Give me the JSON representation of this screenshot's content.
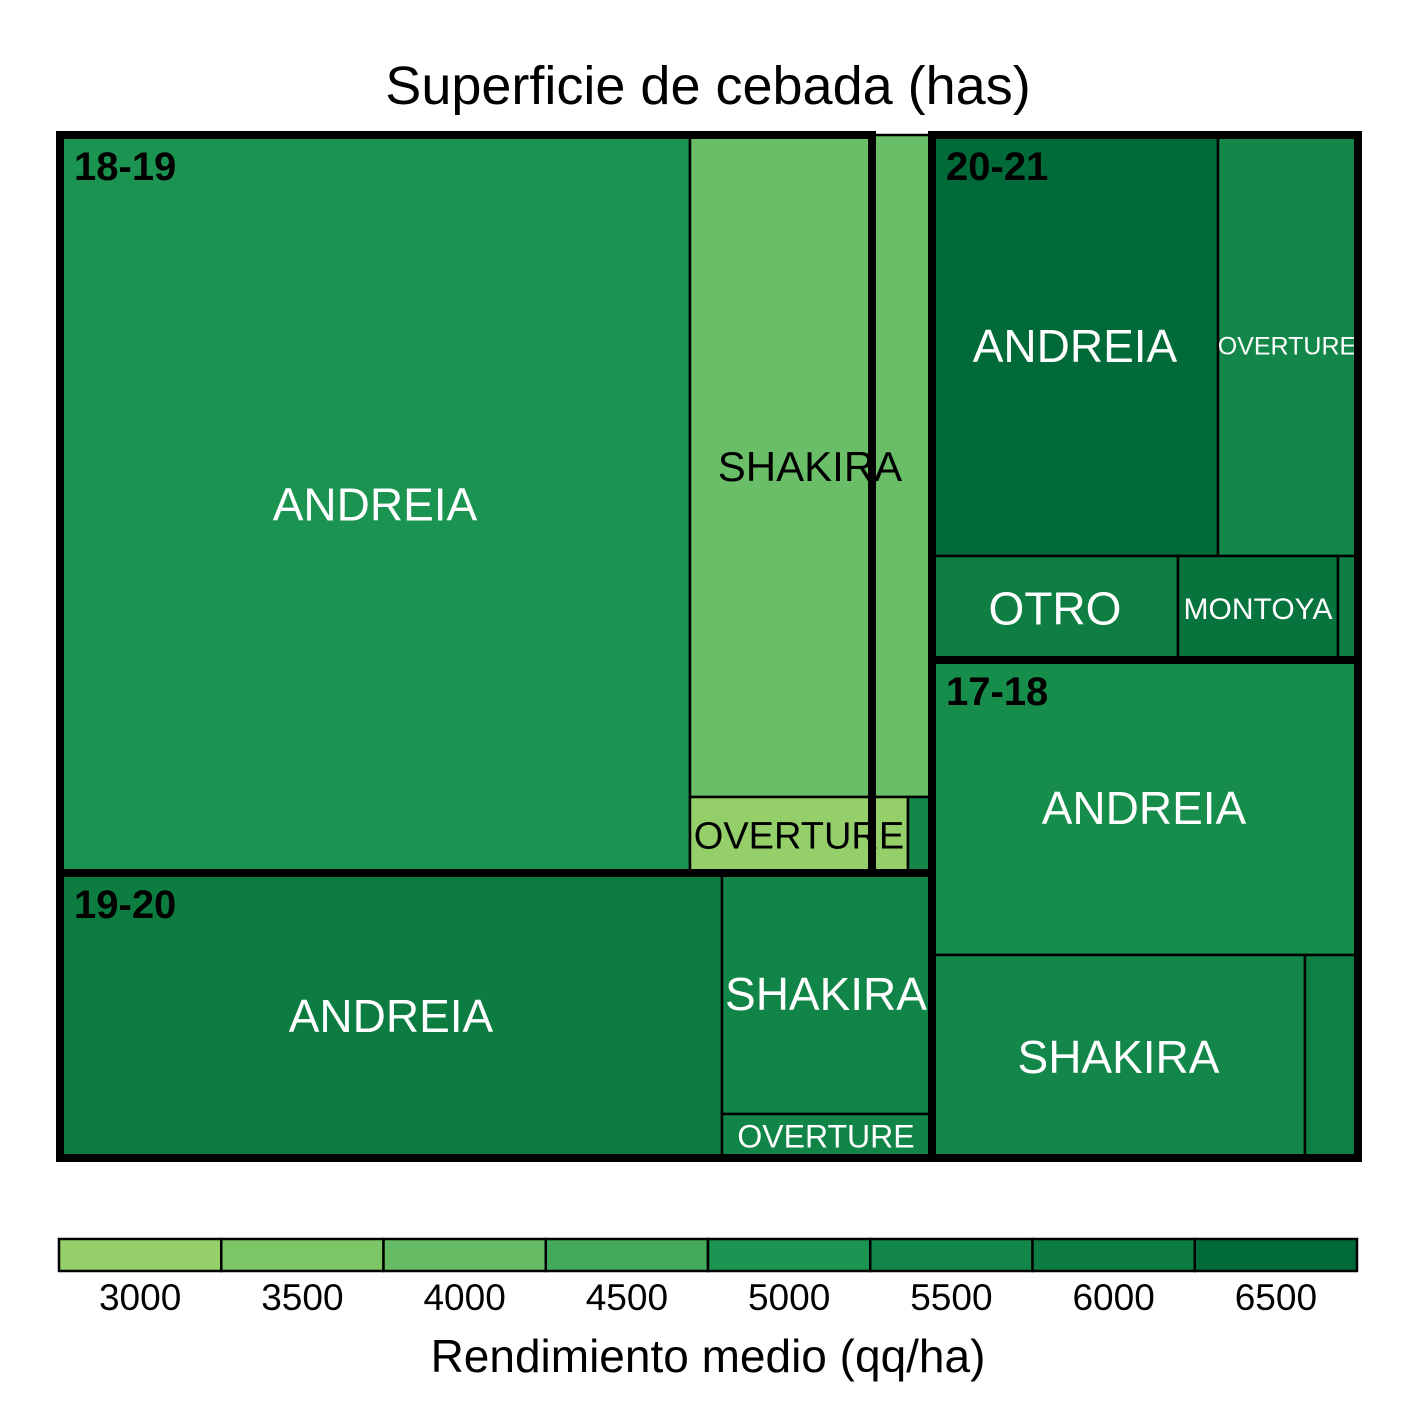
{
  "chart_data": {
    "type": "treemap",
    "title": "Superficie de cebada (has)",
    "size_variable": "Superficie de cebada (has)",
    "color_variable": "Rendimiento medio (qq/ha)",
    "legend": {
      "title": "Rendimiento medio (qq/ha)",
      "placement": "bottom",
      "ticks": [
        "3000",
        "3500",
        "4000",
        "4500",
        "5000",
        "5500",
        "6000",
        "6500"
      ],
      "bins": [
        {
          "value": 3000,
          "color": "#94CF6A"
        },
        {
          "value": 3500,
          "color": "#7DC667"
        },
        {
          "value": 4000,
          "color": "#66BC65"
        },
        {
          "value": 4500,
          "color": "#43AA5C"
        },
        {
          "value": 5000,
          "color": "#1A9450"
        },
        {
          "value": 5500,
          "color": "#138749"
        },
        {
          "value": 6000,
          "color": "#0C7C40"
        },
        {
          "value": 6500,
          "color": "#006A38"
        }
      ]
    },
    "groups": [
      {
        "label": "18-19",
        "cells": [
          {
            "label": "ANDREIA",
            "area_ha": 4650,
            "yield": 5000,
            "color": "#1A9450"
          },
          {
            "label": "SHAKIRA",
            "area_ha": 1570,
            "yield": 3900,
            "color": "#69BE67"
          },
          {
            "label": "OVERTURE",
            "area_ha": 160,
            "yield": 3000,
            "color": "#94CF6A"
          },
          {
            "label": "",
            "area_ha": 20,
            "yield": 5500,
            "color": "#138749"
          }
        ]
      },
      {
        "label": "19-20",
        "cells": [
          {
            "label": "ANDREIA",
            "area_ha": 1840,
            "yield": 6000,
            "color": "#0C7C40"
          },
          {
            "label": "SHAKIRA",
            "area_ha": 490,
            "yield": 5600,
            "color": "#118447"
          },
          {
            "label": "OVERTURE",
            "area_ha": 60,
            "yield": 5600,
            "color": "#118447"
          }
        ]
      },
      {
        "label": "20-21",
        "cells": [
          {
            "label": "ANDREIA",
            "area_ha": 1180,
            "yield": 6500,
            "color": "#006A38"
          },
          {
            "label": "OVERTURE",
            "area_ha": 560,
            "yield": 5500,
            "color": "#138749"
          },
          {
            "label": "OTRO",
            "area_ha": 250,
            "yield": 5800,
            "color": "#0E7E42"
          },
          {
            "label": "MONTOYA",
            "area_ha": 160,
            "yield": 6200,
            "color": "#08743D"
          },
          {
            "label": "",
            "area_ha": 20,
            "yield": 5800,
            "color": "#0E7E42"
          }
        ]
      },
      {
        "label": "17-18",
        "cells": [
          {
            "label": "ANDREIA",
            "area_ha": 1210,
            "yield": 5300,
            "color": "#178D4B"
          },
          {
            "label": "SHAKIRA",
            "area_ha": 730,
            "yield": 5500,
            "color": "#138749"
          },
          {
            "label": "",
            "area_ha": 100,
            "yield": 5800,
            "color": "#0F8044"
          }
        ]
      }
    ]
  }
}
